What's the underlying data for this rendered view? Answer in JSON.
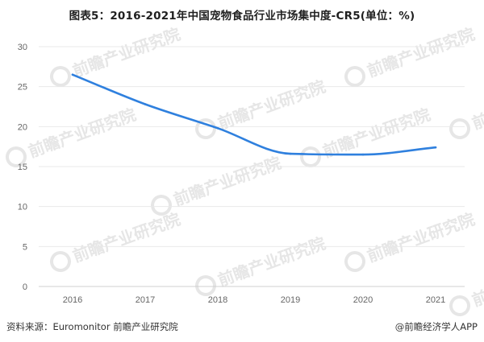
{
  "title": "图表5：2016-2021年中国宠物食品行业市场集中度-CR5(单位：%)",
  "source": "资料来源：Euromonitor 前瞻产业研究院",
  "credit": "@前瞻经济学人APP",
  "watermark": {
    "brand": "前瞻产业研究院",
    "color": "#e6e6e6"
  },
  "colors": {
    "line": "#2f80de",
    "grid": "#e9e9e9",
    "axis": "#cfcfcf",
    "tick": "#666666"
  },
  "chart_data": {
    "type": "line",
    "x": [
      "2016",
      "2017",
      "2018",
      "2019",
      "2020",
      "2021"
    ],
    "series": [
      {
        "values": [
          26.5,
          22.8,
          19.8,
          16.6,
          16.5,
          17.4
        ]
      }
    ],
    "title": "",
    "xlabel": "",
    "ylabel": "",
    "ylim": [
      0,
      30
    ],
    "yticks": [
      0,
      5,
      10,
      15,
      20,
      25,
      30
    ],
    "grid": true,
    "smooth": true
  }
}
